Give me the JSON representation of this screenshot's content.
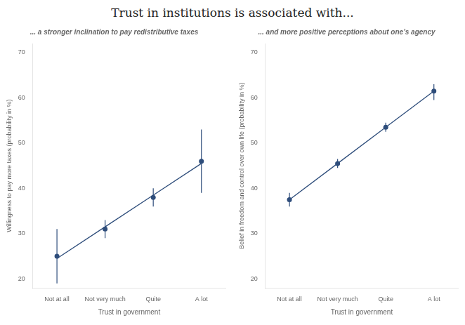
{
  "title": "Trust in institutions is associated with...",
  "chart_data": [
    {
      "type": "scatter",
      "subtitle": "... a stronger inclination to pay redistributive taxes",
      "categories": [
        "Not at all",
        "Not very much",
        "Quite",
        "A lot"
      ],
      "xlabel": "Trust in government",
      "ylabel": "Willingness to pay more taxes (probability in %)",
      "ylim": [
        18,
        72
      ],
      "yticks": [
        20,
        30,
        40,
        50,
        60,
        70
      ],
      "grid": false,
      "series": [
        {
          "type": "line",
          "color": "#2e4d7b",
          "line_style": "solid",
          "values": [
            24.5,
            31.5,
            38.5,
            45.5
          ]
        },
        {
          "type": "scatter",
          "color": "#2e4d7b",
          "marker": "circle",
          "values": [
            25,
            31,
            38,
            46
          ],
          "error_lo": [
            6,
            2,
            2,
            7
          ],
          "error_hi": [
            6,
            2,
            2,
            7
          ]
        }
      ]
    },
    {
      "type": "scatter",
      "subtitle": "... and more positive perceptions about one’s agency",
      "categories": [
        "Not at all",
        "Not very much",
        "Quite",
        "A lot"
      ],
      "xlabel": "Trust in government",
      "ylabel": "Belief in freedom and control over own life (probability in %)",
      "ylim": [
        18,
        72
      ],
      "yticks": [
        20,
        30,
        40,
        50,
        60,
        70
      ],
      "grid": false,
      "series": [
        {
          "type": "line",
          "color": "#2e4d7b",
          "line_style": "solid",
          "values": [
            37.5,
            45.5,
            53.5,
            61.5
          ]
        },
        {
          "type": "scatter",
          "color": "#2e4d7b",
          "marker": "circle",
          "values": [
            37.5,
            45.5,
            53.5,
            61.5
          ],
          "error_lo": [
            1.5,
            1.0,
            1.0,
            2.0
          ],
          "error_hi": [
            1.5,
            1.0,
            1.0,
            1.5
          ]
        }
      ]
    }
  ]
}
